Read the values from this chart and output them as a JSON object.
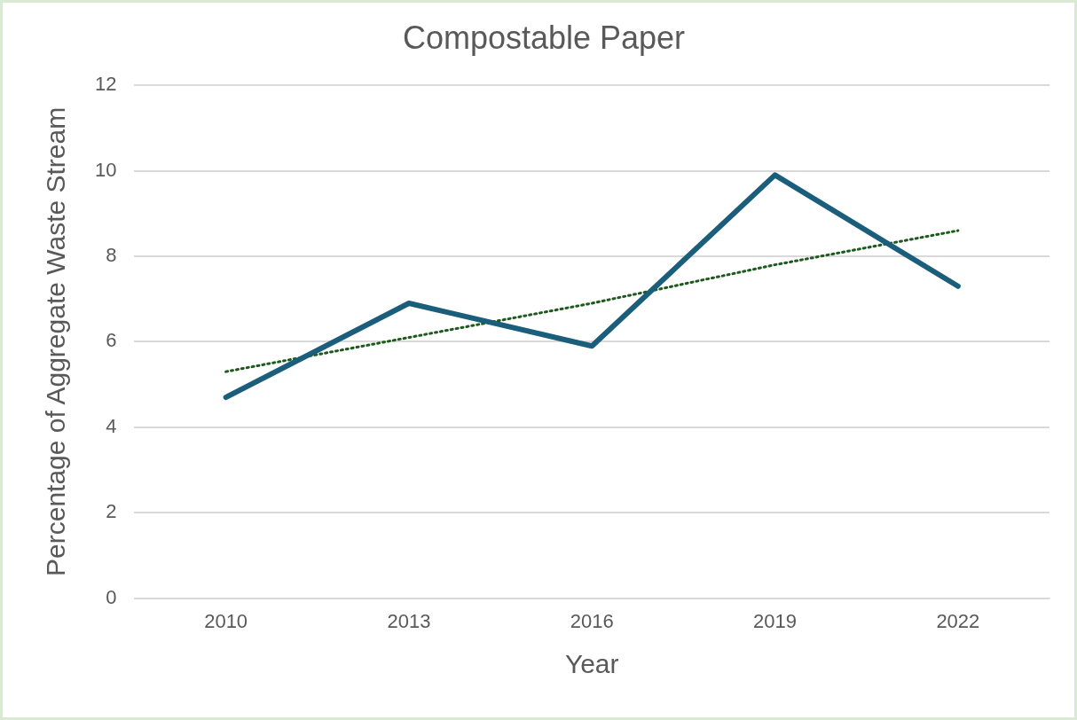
{
  "chart_data": {
    "type": "line",
    "title": "Compostable Paper",
    "xlabel": "Year",
    "ylabel": "Percentage of Aggregate Waste Stream",
    "categories": [
      "2010",
      "2013",
      "2016",
      "2019",
      "2022"
    ],
    "series": [
      {
        "color": "#1b5e7b",
        "values": [
          4.7,
          6.9,
          5.9,
          9.9,
          7.3
        ]
      },
      {
        "type": "line",
        "color": "#1e5a1e",
        "line_style": "dotted",
        "values": [
          5.3,
          6.1,
          6.9,
          7.8,
          8.6
        ]
      }
    ],
    "ylim": [
      0,
      12
    ],
    "yticks": [
      0,
      2,
      4,
      6,
      8,
      10,
      12
    ],
    "grid": "y",
    "legend": false,
    "marker": "none",
    "line_style": "solid"
  }
}
